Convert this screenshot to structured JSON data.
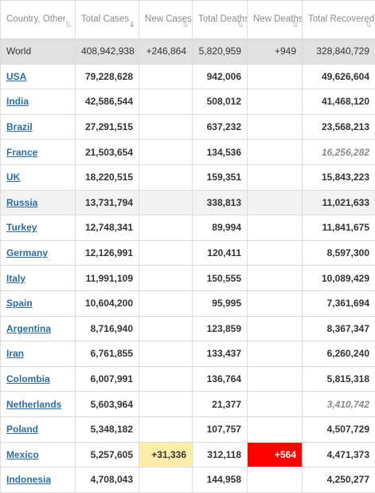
{
  "headers": {
    "country": "Country, Other",
    "total_cases": "Total Cases",
    "new_cases": "New Cases",
    "total_deaths": "Total Deaths",
    "new_deaths": "New Deaths",
    "total_recovered": "Total Recovered",
    "sort_icon": "⇅",
    "sort_active_icon": "⇓"
  },
  "world": {
    "name": "World",
    "total_cases": "408,942,938",
    "new_cases": "+246,864",
    "total_deaths": "5,820,959",
    "new_deaths": "+949",
    "total_recovered": "328,840,729"
  },
  "rows": [
    {
      "name": "USA",
      "total_cases": "79,228,628",
      "new_cases": "",
      "total_deaths": "942,006",
      "new_deaths": "",
      "total_recovered": "49,626,604"
    },
    {
      "name": "India",
      "total_cases": "42,586,544",
      "new_cases": "",
      "total_deaths": "508,012",
      "new_deaths": "",
      "total_recovered": "41,468,120"
    },
    {
      "name": "Brazil",
      "total_cases": "27,291,515",
      "new_cases": "",
      "total_deaths": "637,232",
      "new_deaths": "",
      "total_recovered": "23,568,213"
    },
    {
      "name": "France",
      "total_cases": "21,503,654",
      "new_cases": "",
      "total_deaths": "134,536",
      "new_deaths": "",
      "total_recovered": "16,256,282"
    },
    {
      "name": "UK",
      "total_cases": "18,220,515",
      "new_cases": "",
      "total_deaths": "159,351",
      "new_deaths": "",
      "total_recovered": "15,843,223"
    },
    {
      "name": "Russia",
      "total_cases": "13,731,794",
      "new_cases": "",
      "total_deaths": "338,813",
      "new_deaths": "",
      "total_recovered": "11,021,633"
    },
    {
      "name": "Turkey",
      "total_cases": "12,748,341",
      "new_cases": "",
      "total_deaths": "89,994",
      "new_deaths": "",
      "total_recovered": "11,841,675"
    },
    {
      "name": "Germany",
      "total_cases": "12,126,991",
      "new_cases": "",
      "total_deaths": "120,411",
      "new_deaths": "",
      "total_recovered": "8,597,300"
    },
    {
      "name": "Italy",
      "total_cases": "11,991,109",
      "new_cases": "",
      "total_deaths": "150,555",
      "new_deaths": "",
      "total_recovered": "10,089,429"
    },
    {
      "name": "Spain",
      "total_cases": "10,604,200",
      "new_cases": "",
      "total_deaths": "95,995",
      "new_deaths": "",
      "total_recovered": "7,361,694"
    },
    {
      "name": "Argentina",
      "total_cases": "8,716,940",
      "new_cases": "",
      "total_deaths": "123,859",
      "new_deaths": "",
      "total_recovered": "8,367,347"
    },
    {
      "name": "Iran",
      "total_cases": "6,761,855",
      "new_cases": "",
      "total_deaths": "133,437",
      "new_deaths": "",
      "total_recovered": "6,260,240"
    },
    {
      "name": "Colombia",
      "total_cases": "6,007,991",
      "new_cases": "",
      "total_deaths": "136,764",
      "new_deaths": "",
      "total_recovered": "5,815,318"
    },
    {
      "name": "Netherlands",
      "total_cases": "5,603,964",
      "new_cases": "",
      "total_deaths": "21,377",
      "new_deaths": "",
      "total_recovered": "3,410,742"
    },
    {
      "name": "Poland",
      "total_cases": "5,348,182",
      "new_cases": "",
      "total_deaths": "107,757",
      "new_deaths": "",
      "total_recovered": "4,507,729"
    },
    {
      "name": "Mexico",
      "total_cases": "5,257,605",
      "new_cases": "+31,336",
      "total_deaths": "312,118",
      "new_deaths": "+564",
      "total_recovered": "4,471,373"
    },
    {
      "name": "Indonesia",
      "total_cases": "4,708,043",
      "new_cases": "",
      "total_deaths": "144,958",
      "new_deaths": "",
      "total_recovered": "4,250,277"
    }
  ],
  "colors": {
    "link": "#2c6e9e",
    "world_row_bg": "#e1e1e1",
    "alt_row_bg": "#f2f2f2",
    "new_cases_highlight": "#ffeeaa",
    "new_deaths_highlight": "#ff0000",
    "estimated_recovered_text": "#8a8a8a"
  }
}
